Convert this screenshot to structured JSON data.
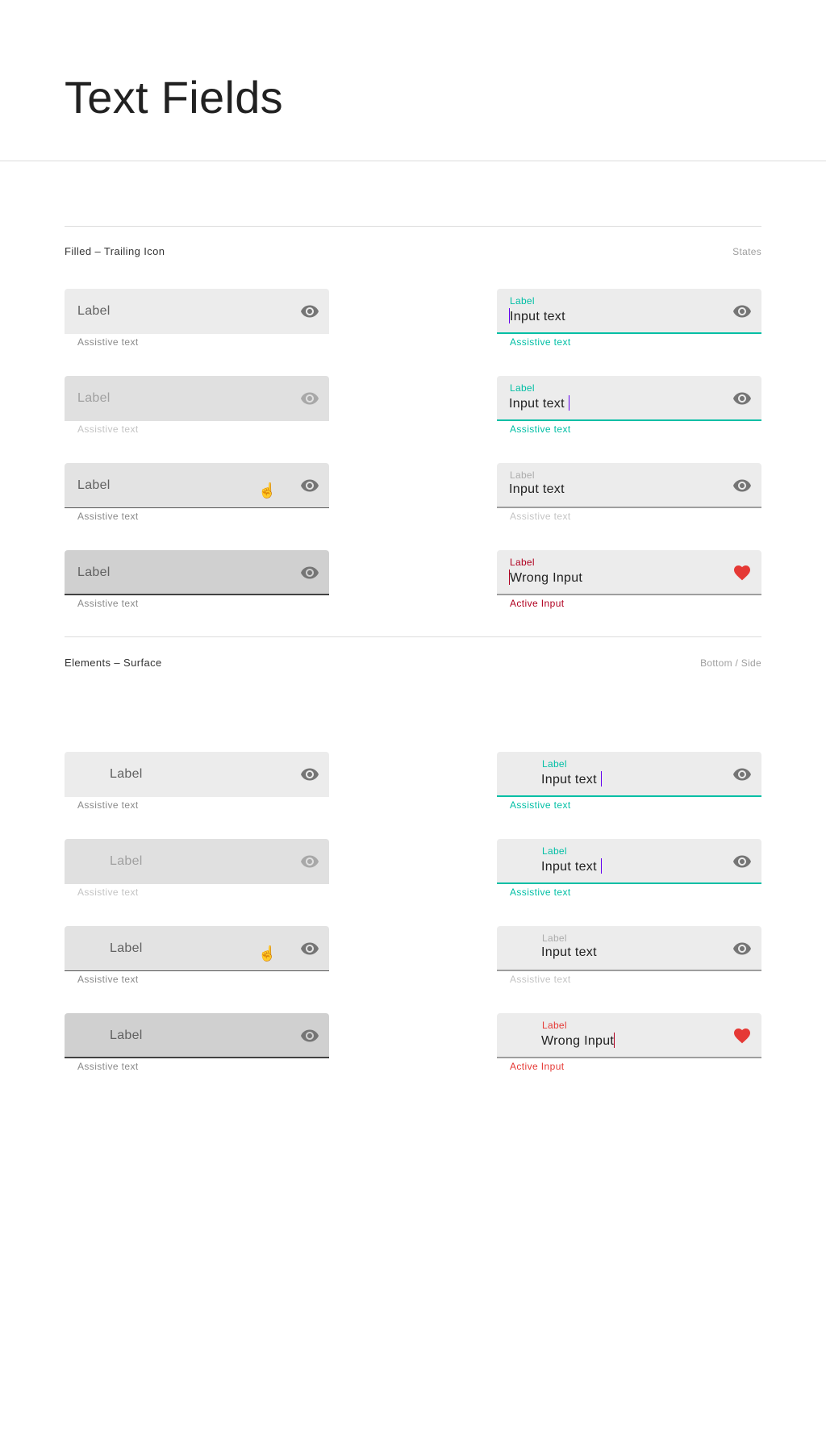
{
  "page": {
    "title": "Text Fields"
  },
  "colors": {
    "teal": "#00bfa5",
    "caret": "#6200ee",
    "error_dark": "#b00020",
    "error": "#e53935",
    "icon": "#757575",
    "icon_disabled": "#a8a8a8"
  },
  "sections": [
    {
      "title": "Filled – Trailing Icon",
      "right_label": "States",
      "left_fields": [
        {
          "state": "enabled",
          "label": "Label",
          "helper": "Assistive text",
          "icon": "eye-icon"
        },
        {
          "state": "disabled",
          "label": "Label",
          "helper": "Assistive text",
          "icon": "eye-icon"
        },
        {
          "state": "hover",
          "label": "Label",
          "helper": "Assistive text",
          "icon": "eye-icon",
          "cursor": "hand-pointer-icon"
        },
        {
          "state": "pressed",
          "label": "Label",
          "helper": "Assistive text",
          "icon": "eye-icon"
        }
      ],
      "right_fields": [
        {
          "state": "focused",
          "label": "Label",
          "value": "Input text",
          "caret": "start",
          "helper": "Assistive text",
          "icon": "eye-icon"
        },
        {
          "state": "focused",
          "label": "Label",
          "value": "Input text ",
          "caret": "end",
          "helper": "Assistive text",
          "icon": "eye-icon"
        },
        {
          "state": "filled",
          "label": "Label",
          "value": "Input text",
          "helper": "Assistive text",
          "icon": "eye-icon"
        },
        {
          "state": "error",
          "label": "Label",
          "value": "Wrong Input",
          "caret": "start",
          "helper": "Active Input",
          "icon": "heart-icon"
        }
      ]
    },
    {
      "title": "Elements – Surface",
      "right_label": "Bottom / Side",
      "left_fields": [
        {
          "state": "enabled",
          "label": "Label",
          "helper": "Assistive text",
          "icon": "eye-icon"
        },
        {
          "state": "disabled",
          "label": "Label",
          "helper": "Assistive text",
          "icon": "eye-icon"
        },
        {
          "state": "hover",
          "label": "Label",
          "helper": "Assistive text",
          "icon": "eye-icon",
          "cursor": "hand-pointer-icon"
        },
        {
          "state": "pressed",
          "label": "Label",
          "helper": "Assistive text",
          "icon": "eye-icon"
        }
      ],
      "right_fields": [
        {
          "state": "focused",
          "label": "Label",
          "value": "Input text ",
          "caret": "end",
          "helper": "Assistive text",
          "icon": "eye-icon"
        },
        {
          "state": "focused",
          "label": "Label",
          "value": "Input text ",
          "caret": "end",
          "helper": "Assistive text",
          "icon": "eye-icon"
        },
        {
          "state": "filled",
          "label": "Label",
          "value": "Input text",
          "helper": "Assistive text",
          "icon": "eye-icon"
        },
        {
          "state": "error2",
          "label": "Label",
          "value": "Wrong Input",
          "caret": "end",
          "helper": "Active Input",
          "icon": "heart-icon"
        }
      ]
    }
  ]
}
